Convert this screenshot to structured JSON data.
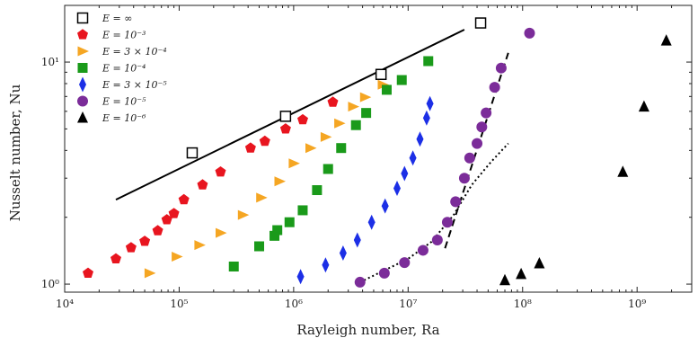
{
  "chart_data": {
    "type": "scatter",
    "xlabel": "Rayleigh number, Ra",
    "ylabel": "Nusselt number, Nu",
    "xscale": "log",
    "yscale": "log",
    "xlim": [
      10000,
      3000000000
    ],
    "ylim": [
      0.92,
      18
    ],
    "x_ticks": [
      {
        "value": 10000,
        "label": "10⁴"
      },
      {
        "value": 100000,
        "label": "10⁵"
      },
      {
        "value": 1000000,
        "label": "10⁶"
      },
      {
        "value": 10000000,
        "label": "10⁷"
      },
      {
        "value": 100000000,
        "label": "10⁸"
      },
      {
        "value": 1000000000,
        "label": "10⁹"
      }
    ],
    "y_ticks": [
      {
        "value": 1,
        "label": "10⁰"
      },
      {
        "value": 10,
        "label": "10¹"
      }
    ],
    "legend_position": "top-left",
    "series": [
      {
        "name": "E = ∞",
        "marker": "square-open",
        "color": "#000000",
        "points": [
          [
            130000,
            3.9
          ],
          [
            850000,
            5.7
          ],
          [
            5800000,
            8.8
          ],
          [
            43000000,
            15.0
          ]
        ]
      },
      {
        "name": "E = 10⁻³",
        "marker": "pentagon",
        "color": "#e8151f",
        "points": [
          [
            16000,
            1.12
          ],
          [
            28000,
            1.3
          ],
          [
            38000,
            1.46
          ],
          [
            50000,
            1.56
          ],
          [
            65000,
            1.74
          ],
          [
            78000,
            1.95
          ],
          [
            90000,
            2.08
          ],
          [
            110000,
            2.4
          ],
          [
            160000,
            2.8
          ],
          [
            230000,
            3.2
          ],
          [
            420000,
            4.1
          ],
          [
            560000,
            4.4
          ],
          [
            850000,
            5.0
          ],
          [
            1200000,
            5.5
          ],
          [
            2200000,
            6.6
          ]
        ]
      },
      {
        "name": "E = 3 × 10⁻⁴",
        "marker": "triangle-right",
        "color": "#f5a623",
        "points": [
          [
            55000,
            1.12
          ],
          [
            95000,
            1.33
          ],
          [
            150000,
            1.5
          ],
          [
            230000,
            1.7
          ],
          [
            360000,
            2.05
          ],
          [
            520000,
            2.45
          ],
          [
            750000,
            2.9
          ],
          [
            1000000,
            3.5
          ],
          [
            1400000,
            4.1
          ],
          [
            1900000,
            4.6
          ],
          [
            2500000,
            5.3
          ],
          [
            3300000,
            6.3
          ],
          [
            4200000,
            6.95
          ],
          [
            6000000,
            7.9
          ]
        ]
      },
      {
        "name": "E = 10⁻⁴",
        "marker": "square",
        "color": "#1a9a1a",
        "points": [
          [
            300000,
            1.2
          ],
          [
            500000,
            1.48
          ],
          [
            680000,
            1.65
          ],
          [
            720000,
            1.75
          ],
          [
            920000,
            1.9
          ],
          [
            1200000,
            2.15
          ],
          [
            1600000,
            2.65
          ],
          [
            2000000,
            3.3
          ],
          [
            2600000,
            4.1
          ],
          [
            3500000,
            5.2
          ],
          [
            4300000,
            5.9
          ],
          [
            6500000,
            7.5
          ],
          [
            8800000,
            8.3
          ],
          [
            15000000,
            10.1
          ]
        ]
      },
      {
        "name": "E = 3 × 10⁻⁵",
        "marker": "diamond",
        "color": "#1c2fe6",
        "points": [
          [
            1150000,
            1.08
          ],
          [
            1900000,
            1.22
          ],
          [
            2700000,
            1.38
          ],
          [
            3600000,
            1.58
          ],
          [
            4800000,
            1.9
          ],
          [
            6300000,
            2.25
          ],
          [
            8000000,
            2.7
          ],
          [
            9300000,
            3.15
          ],
          [
            11000000,
            3.7
          ],
          [
            12700000,
            4.5
          ],
          [
            14500000,
            5.6
          ],
          [
            15500000,
            6.5
          ]
        ]
      },
      {
        "name": "E = 10⁻⁵",
        "marker": "circle",
        "color": "#7b2c99",
        "points": [
          [
            3800000,
            1.02
          ],
          [
            6200000,
            1.12
          ],
          [
            9300000,
            1.25
          ],
          [
            13500000,
            1.42
          ],
          [
            18000000,
            1.58
          ],
          [
            22000000,
            1.9
          ],
          [
            26000000,
            2.35
          ],
          [
            31000000,
            3.0
          ],
          [
            34500000,
            3.7
          ],
          [
            40000000,
            4.3
          ],
          [
            44000000,
            5.1
          ],
          [
            48000000,
            5.9
          ],
          [
            57000000,
            7.7
          ],
          [
            65000000,
            9.4
          ],
          [
            115000000,
            13.5
          ]
        ]
      },
      {
        "name": "E = 10⁻⁶",
        "marker": "triangle-up",
        "color": "#000000",
        "points": [
          [
            70000000,
            1.04
          ],
          [
            97000000,
            1.11
          ],
          [
            140000000,
            1.24
          ],
          [
            750000000,
            3.2
          ],
          [
            1150000000,
            6.3
          ],
          [
            1800000000,
            12.5
          ]
        ]
      }
    ],
    "fits": [
      {
        "style": "solid",
        "color": "#000000",
        "points": [
          [
            28000,
            2.4
          ],
          [
            31000000,
            14.0
          ]
        ]
      },
      {
        "style": "dashed",
        "color": "#000000",
        "points": [
          [
            21000000,
            1.45
          ],
          [
            75000000,
            11.0
          ]
        ]
      },
      {
        "style": "dotted",
        "color": "#000000",
        "points": [
          [
            3800000,
            1.02
          ],
          [
            10000000,
            1.3
          ],
          [
            16000000,
            1.55
          ],
          [
            25000000,
            2.05
          ],
          [
            36000000,
            2.8
          ],
          [
            53000000,
            3.55
          ],
          [
            75000000,
            4.3
          ]
        ]
      }
    ]
  }
}
